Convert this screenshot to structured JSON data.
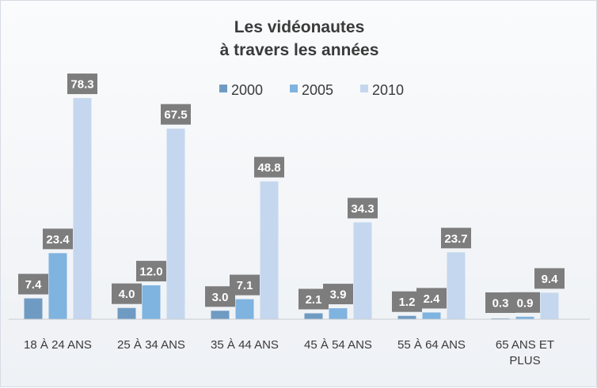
{
  "chart_data": {
    "type": "bar",
    "title": "Les vidéonautes",
    "subtitle": "à travers les années",
    "categories": [
      "18 À 24 ANS",
      "25 À 34 ANS",
      "35 À 44 ANS",
      "45 À 54 ANS",
      "55 À 64 ANS",
      "65 ANS ET PLUS"
    ],
    "category_lines": [
      [
        "18 À 24 ANS"
      ],
      [
        "25 À 34 ANS"
      ],
      [
        "35 À 44 ANS"
      ],
      [
        "45 À 54 ANS"
      ],
      [
        "55 À 64 ANS"
      ],
      [
        "65 ANS ET",
        "PLUS"
      ]
    ],
    "series": [
      {
        "name": "2000",
        "color": "#6f9bc3",
        "values": [
          7.4,
          4.0,
          3.0,
          2.1,
          1.2,
          0.3
        ]
      },
      {
        "name": "2005",
        "color": "#7fb3e0",
        "values": [
          23.4,
          12.0,
          7.1,
          3.9,
          2.4,
          0.9
        ]
      },
      {
        "name": "2010",
        "color": "#c5d7ee",
        "values": [
          78.3,
          67.5,
          48.8,
          34.3,
          23.7,
          9.4
        ]
      }
    ],
    "ylim": [
      0,
      80
    ],
    "grid": false,
    "legend": "top-center",
    "label_box_color": "#7d7d7d",
    "axis_color": "#c8ccd1"
  }
}
